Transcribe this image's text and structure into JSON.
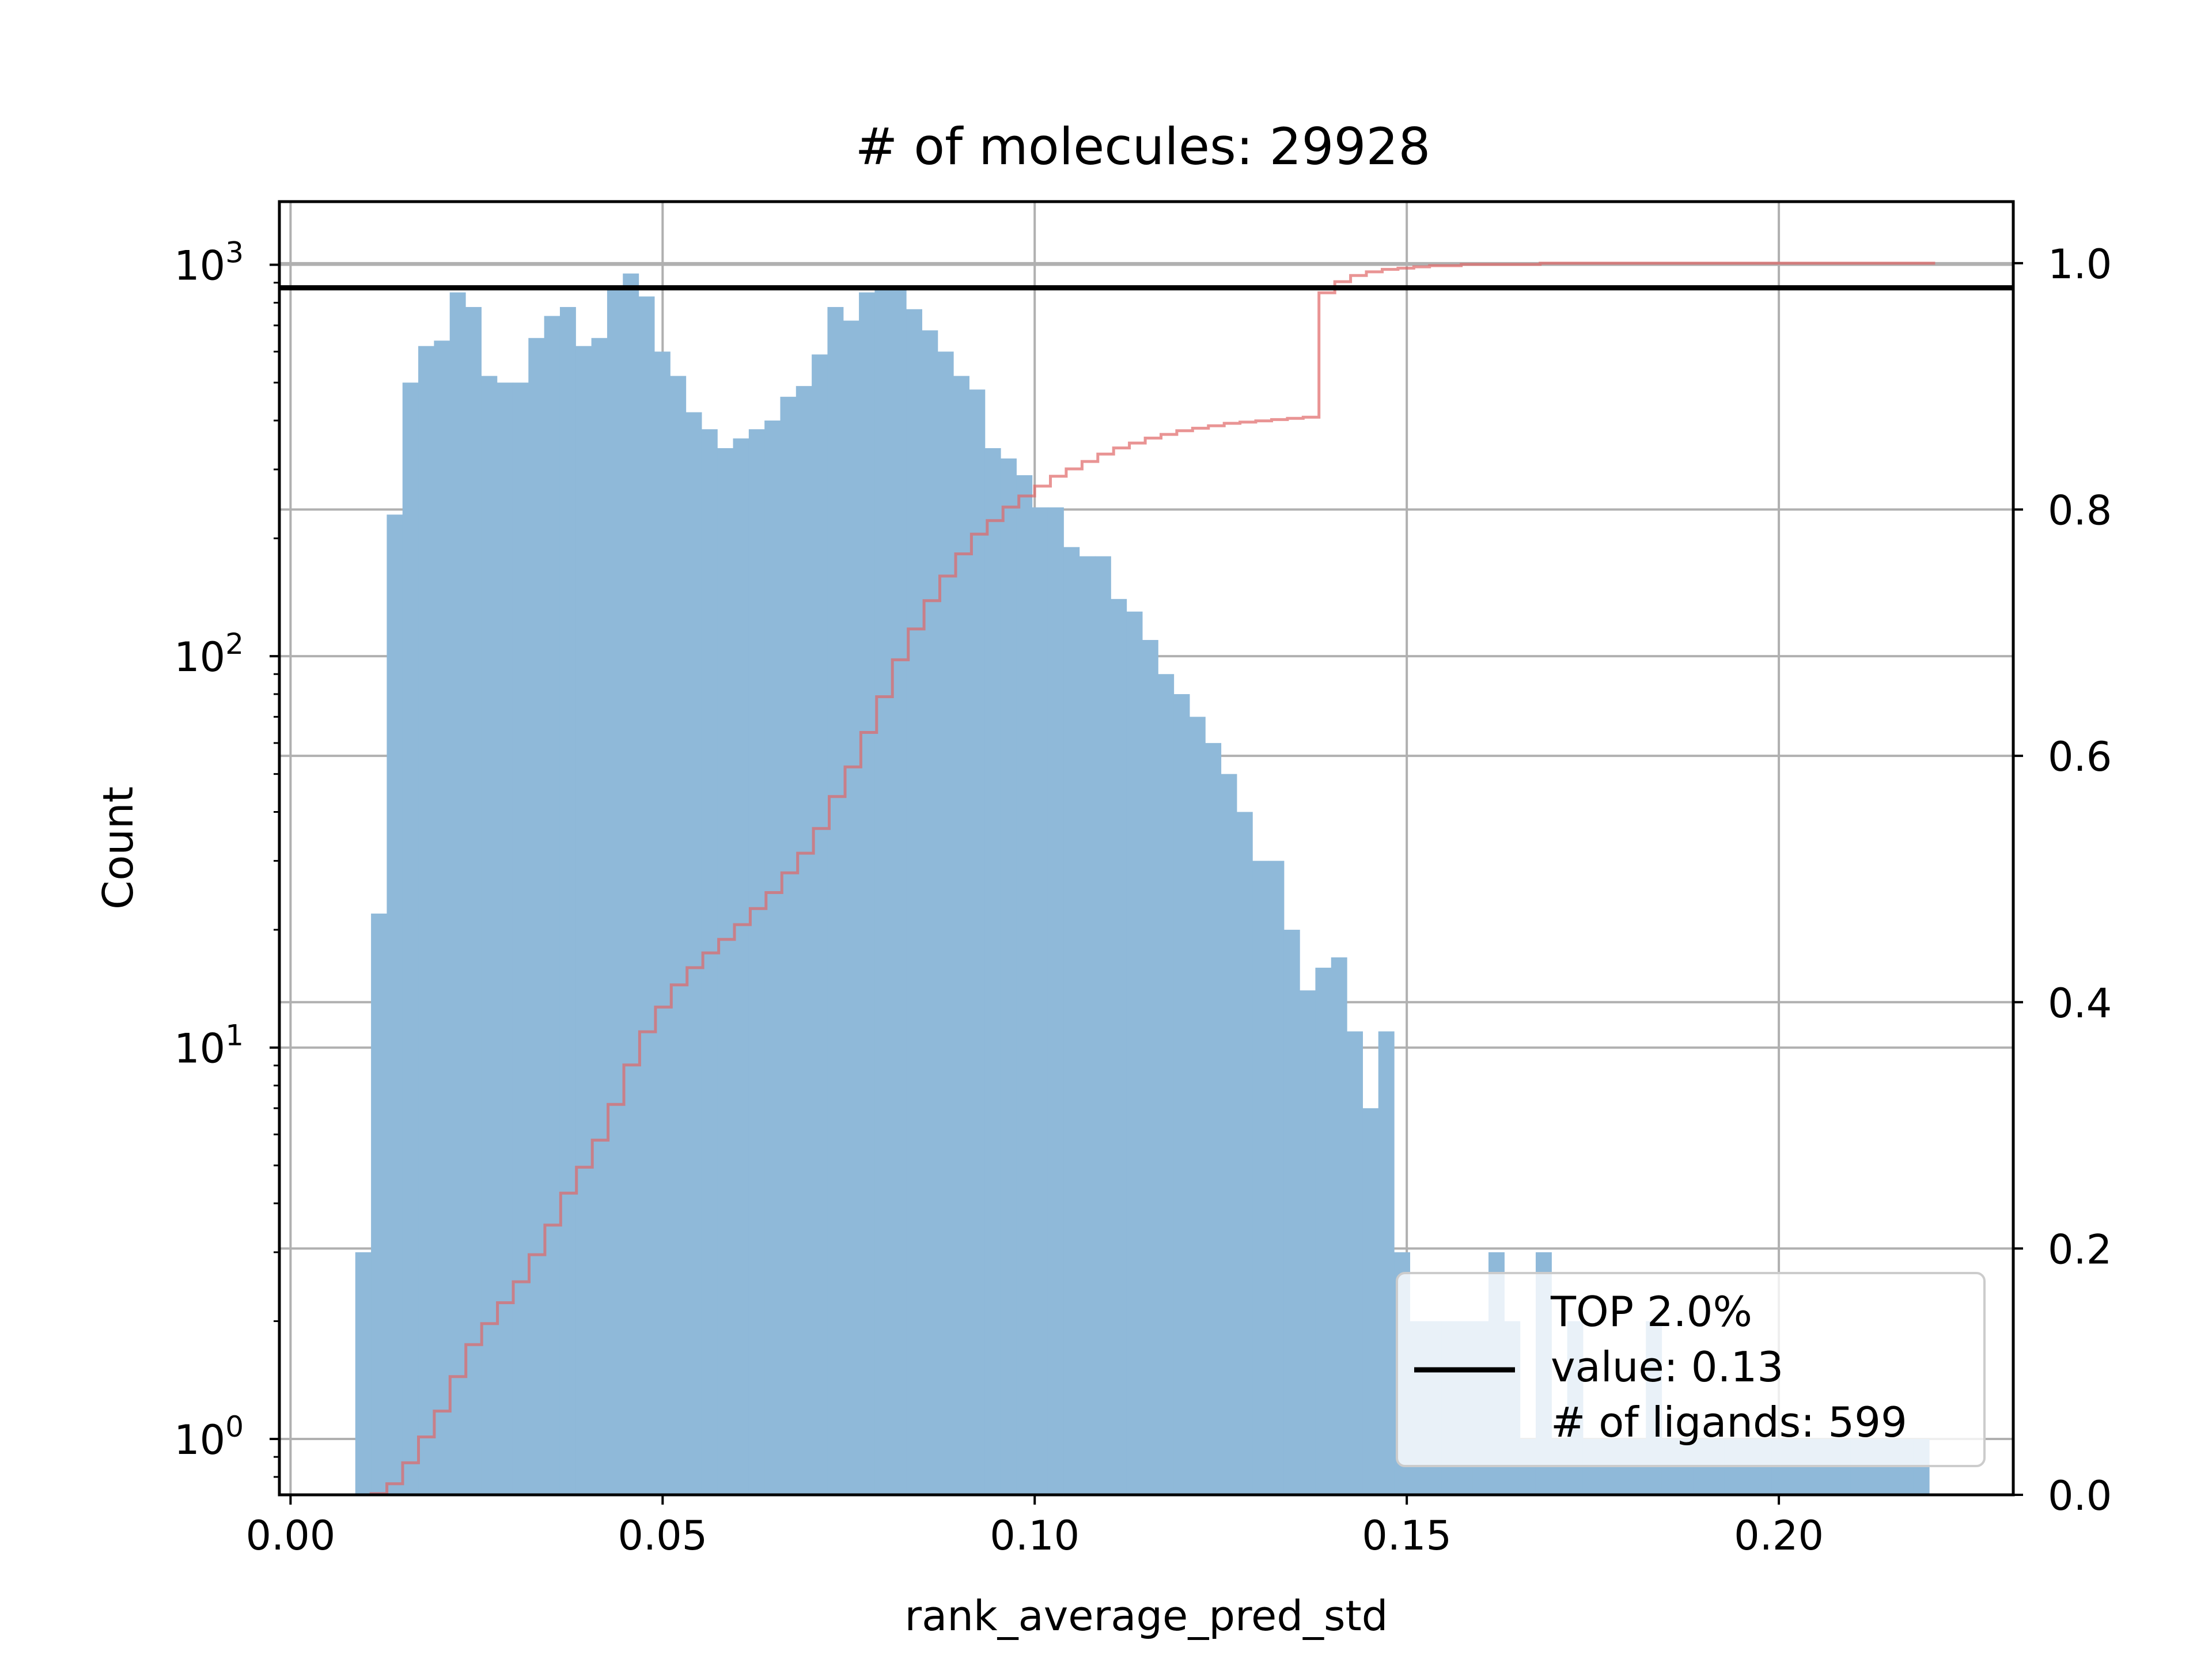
{
  "chart_data": {
    "type": "bar",
    "title": "# of molecules: 29928",
    "xlabel": "rank_average_pred_std",
    "ylabel": "Count",
    "xlim": [
      -0.0015,
      0.2315
    ],
    "ylim_log": [
      0.72,
      1450
    ],
    "ylim_right": [
      0.0,
      1.05
    ],
    "x_ticks": [
      0.0,
      0.05,
      0.1,
      0.15,
      0.2
    ],
    "x_tick_labels": [
      "0.00",
      "0.05",
      "0.10",
      "0.15",
      "0.20"
    ],
    "y_ticks": [
      1,
      10,
      100,
      1000
    ],
    "y_tick_bases": [
      "10",
      "10",
      "10",
      "10"
    ],
    "y_tick_exps": [
      "0",
      "1",
      "2",
      "3"
    ],
    "y_ticks_right": [
      0.0,
      0.2,
      0.4,
      0.6,
      0.8,
      1.0
    ],
    "y_tick_labels_right": [
      "0.0",
      "0.2",
      "0.4",
      "0.6",
      "0.8",
      "1.0"
    ],
    "grid": true,
    "yscale": "log",
    "colors": {
      "bars": "#8fb9d9",
      "cdf": "#e06666",
      "threshold": "#000000",
      "grid": "#b0b0b0"
    },
    "series": [
      {
        "type": "histogram",
        "bin_start": 0.0087,
        "bin_width": 0.002115,
        "counts": [
          3,
          22,
          230,
          500,
          620,
          640,
          850,
          780,
          520,
          500,
          500,
          650,
          740,
          780,
          620,
          650,
          880,
          950,
          830,
          600,
          520,
          420,
          380,
          340,
          360,
          380,
          400,
          460,
          490,
          590,
          780,
          720,
          850,
          880,
          880,
          770,
          680,
          600,
          520,
          480,
          340,
          320,
          290,
          240,
          240,
          190,
          180,
          180,
          140,
          130,
          110,
          90,
          80,
          70,
          60,
          50,
          40,
          30,
          30,
          20,
          14,
          16,
          17,
          11,
          7,
          11,
          3,
          2,
          2,
          2,
          2,
          2,
          3,
          2,
          1,
          3,
          1,
          2,
          1,
          1,
          1,
          1,
          2,
          1,
          1,
          1,
          1,
          1,
          1,
          1,
          1,
          1,
          1,
          1,
          1,
          1,
          1,
          1,
          1,
          1
        ]
      },
      {
        "type": "cdf-step",
        "y_axis": "right",
        "x_start": 0.0087,
        "x_end": 0.221,
        "values": [
          0.0,
          0.001,
          0.009,
          0.026,
          0.047,
          0.068,
          0.096,
          0.122,
          0.139,
          0.156,
          0.173,
          0.195,
          0.219,
          0.245,
          0.266,
          0.288,
          0.317,
          0.349,
          0.376,
          0.396,
          0.414,
          0.428,
          0.44,
          0.451,
          0.463,
          0.476,
          0.489,
          0.505,
          0.521,
          0.541,
          0.567,
          0.591,
          0.619,
          0.648,
          0.678,
          0.703,
          0.726,
          0.746,
          0.764,
          0.78,
          0.791,
          0.802,
          0.811,
          0.819,
          0.827,
          0.833,
          0.839,
          0.845,
          0.85,
          0.854,
          0.858,
          0.861,
          0.864,
          0.866,
          0.868,
          0.87,
          0.871,
          0.872,
          0.873,
          0.874,
          0.875,
          0.976,
          0.985,
          0.99,
          0.993,
          0.995,
          0.996,
          0.997,
          0.998,
          0.998,
          0.999,
          0.999,
          0.999,
          0.999,
          0.999,
          1.0,
          1.0,
          1.0,
          1.0,
          1.0,
          1.0,
          1.0,
          1.0,
          1.0,
          1.0,
          1.0,
          1.0,
          1.0,
          1.0,
          1.0,
          1.0,
          1.0,
          1.0,
          1.0,
          1.0,
          1.0,
          1.0,
          1.0,
          1.0,
          1.0
        ]
      },
      {
        "type": "hline",
        "y_axis": "right",
        "value": 0.98
      }
    ],
    "legend": {
      "position": "lower right",
      "lines": [
        "TOP 2.0%",
        "value: 0.13",
        "# of ligands: 599"
      ]
    }
  }
}
